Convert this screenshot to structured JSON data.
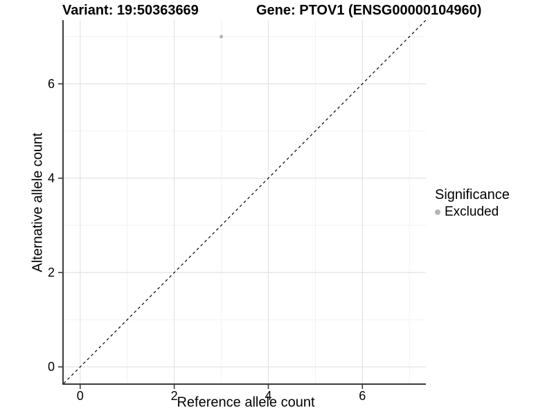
{
  "titles": {
    "variant": "Variant: 19:50363669",
    "gene": "Gene: PTOV1 (ENSG00000104960)"
  },
  "axes": {
    "x_label": "Reference allele count",
    "y_label": "Alternative allele count"
  },
  "legend": {
    "title": "Significance",
    "items": [
      {
        "label": "Excluded",
        "color": "#b5b5b5"
      }
    ]
  },
  "colors": {
    "grid_major": "#e4e4e4",
    "grid_minor": "#f1f1f1",
    "axis_line": "#3a3a3a",
    "tick_mark": "#3a3a3a",
    "tick_text": "#000000",
    "reference_line": "#000000"
  },
  "chart_data": {
    "type": "scatter",
    "title": "Variant: 19:50363669   Gene: PTOV1 (ENSG00000104960)",
    "xlabel": "Reference allele count",
    "ylabel": "Alternative allele count",
    "xlim": [
      -0.35,
      7.35
    ],
    "ylim": [
      -0.35,
      7.35
    ],
    "x_ticks": [
      0,
      2,
      4,
      6
    ],
    "y_ticks": [
      0,
      2,
      4,
      6
    ],
    "x_minor_ticks": [
      1,
      3,
      5,
      7
    ],
    "y_minor_ticks": [
      1,
      3,
      5,
      7
    ],
    "grid": "major+minor",
    "legend_position": "right",
    "series": [
      {
        "name": "Excluded",
        "color": "#b5b5b5",
        "points": [
          {
            "x": 3,
            "y": 7
          }
        ]
      }
    ],
    "reference_line": {
      "kind": "identity y=x",
      "style": "dashed",
      "color": "#000000",
      "from": [
        -0.35,
        -0.35
      ],
      "to": [
        7.35,
        7.35
      ]
    }
  }
}
